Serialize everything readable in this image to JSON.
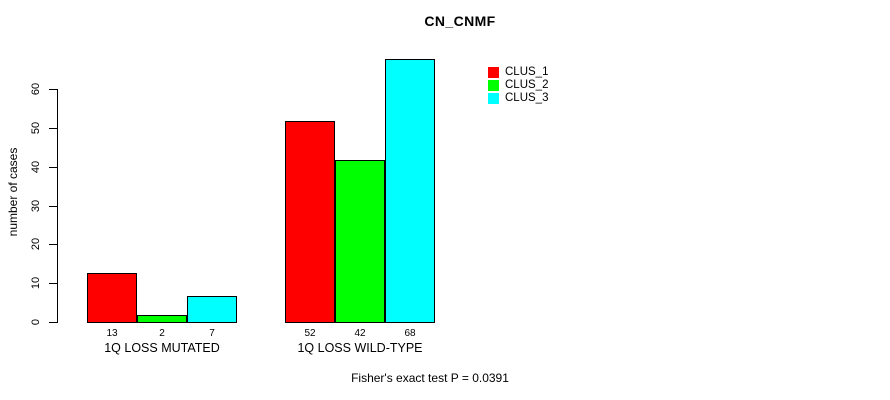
{
  "chart_data": {
    "type": "bar",
    "title": "CN_CNMF",
    "ylabel": "number of cases",
    "xlabel": "",
    "categories": [
      "1Q LOSS MUTATED",
      "1Q LOSS WILD-TYPE"
    ],
    "series": [
      {
        "name": "CLUS_1",
        "color": "#ff0000",
        "values": [
          13,
          52
        ]
      },
      {
        "name": "CLUS_2",
        "color": "#00ff00",
        "values": [
          2,
          42
        ]
      },
      {
        "name": "CLUS_3",
        "color": "#00ffff",
        "values": [
          7,
          68
        ]
      }
    ],
    "bar_value_labels": [
      [
        13,
        2,
        7
      ],
      [
        52,
        42,
        68
      ]
    ],
    "yticks": [
      0,
      10,
      20,
      30,
      40,
      50,
      60
    ],
    "ylim": [
      0,
      68
    ],
    "grid": false,
    "legend_position": "top-right",
    "annotation": "Fisher's exact test P = 0.0391"
  }
}
